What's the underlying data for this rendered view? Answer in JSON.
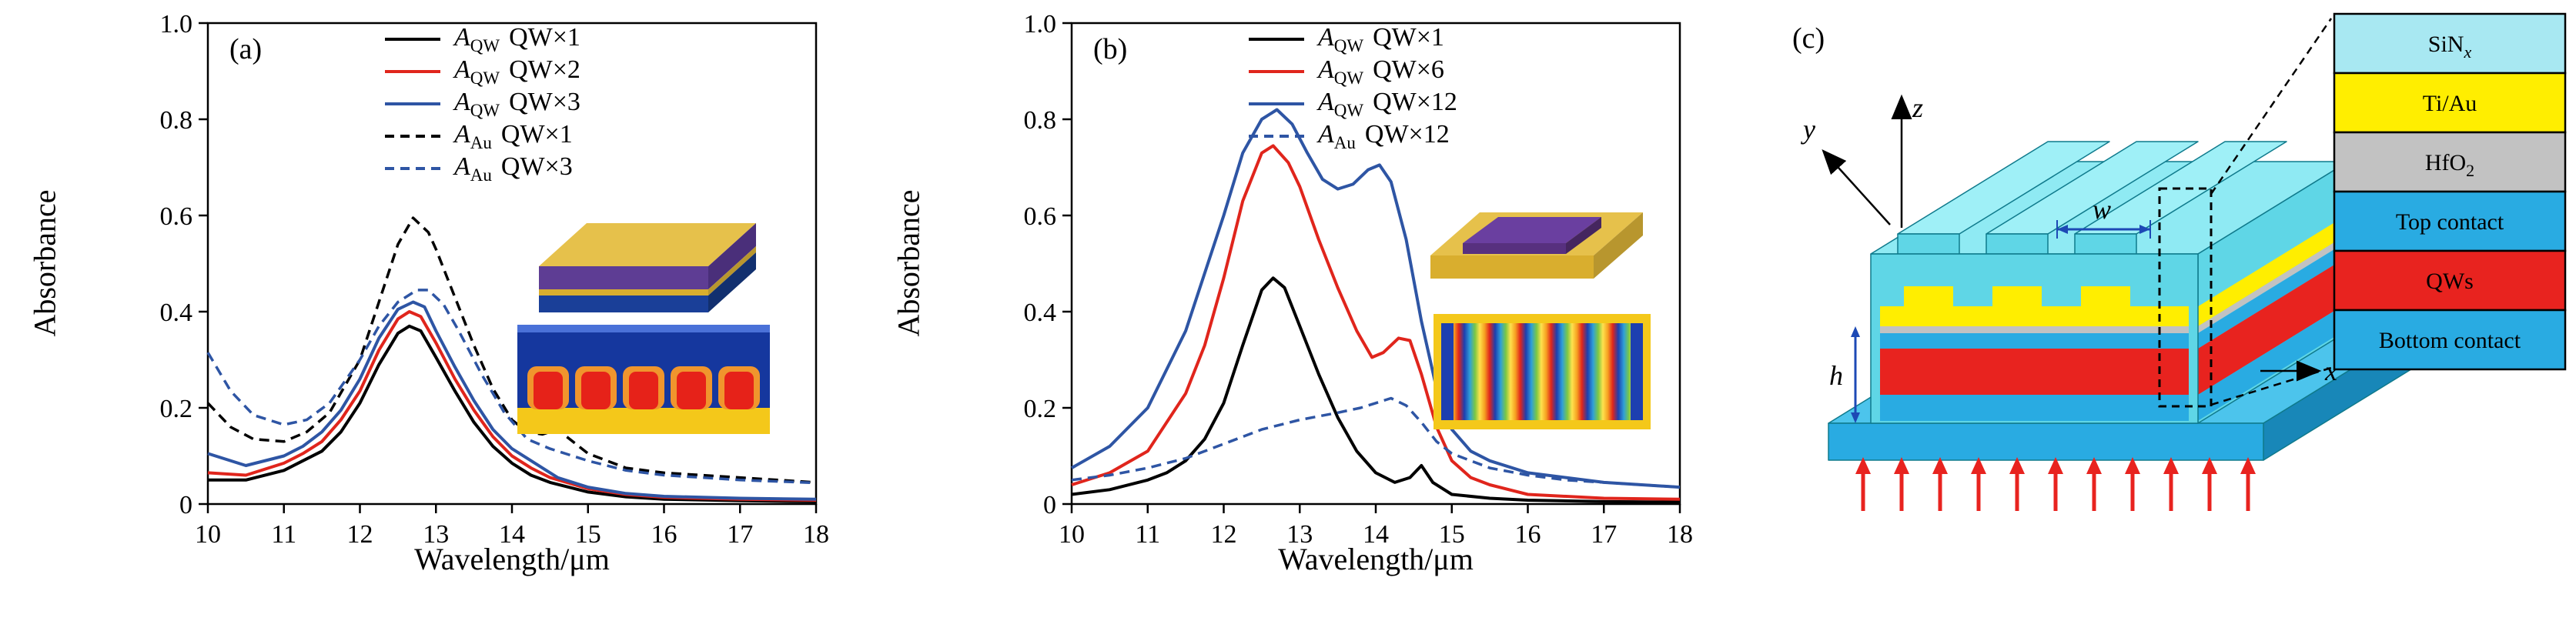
{
  "chart_data": [
    {
      "type": "line",
      "panel_label": "(a)",
      "title": "",
      "xlabel": "Wavelength/μm",
      "ylabel": "Absorbance",
      "xlim": [
        10,
        18
      ],
      "ylim": [
        0,
        1.0
      ],
      "xticks": [
        "10",
        "11",
        "12",
        "13",
        "14",
        "15",
        "16",
        "17",
        "18"
      ],
      "yticks": [
        "0",
        "0.2",
        "0.4",
        "0.6",
        "0.8",
        "1.0"
      ],
      "grid": false,
      "legend_position": "top-center-inside",
      "series": [
        {
          "sym": "A",
          "sub": "QW",
          "label": "QW×1",
          "color": "#000000",
          "dash": false,
          "x": [
            10,
            10.5,
            11,
            11.25,
            11.5,
            11.75,
            12,
            12.25,
            12.5,
            12.65,
            12.8,
            13,
            13.25,
            13.5,
            13.75,
            14,
            14.25,
            14.5,
            15,
            15.5,
            16,
            17,
            18
          ],
          "y": [
            0.05,
            0.05,
            0.07,
            0.09,
            0.11,
            0.15,
            0.21,
            0.29,
            0.355,
            0.37,
            0.36,
            0.305,
            0.235,
            0.17,
            0.12,
            0.085,
            0.06,
            0.045,
            0.025,
            0.015,
            0.01,
            0.007,
            0.005
          ]
        },
        {
          "sym": "A",
          "sub": "QW",
          "label": "QW×2",
          "color": "#e0251c",
          "dash": false,
          "x": [
            10,
            10.5,
            11,
            11.25,
            11.5,
            11.75,
            12,
            12.25,
            12.5,
            12.65,
            12.8,
            13,
            13.25,
            13.5,
            13.75,
            14,
            14.25,
            14.5,
            15,
            15.5,
            16,
            17,
            18
          ],
          "y": [
            0.065,
            0.06,
            0.085,
            0.105,
            0.13,
            0.175,
            0.235,
            0.32,
            0.385,
            0.4,
            0.39,
            0.335,
            0.26,
            0.195,
            0.14,
            0.1,
            0.075,
            0.055,
            0.032,
            0.02,
            0.014,
            0.01,
            0.008
          ]
        },
        {
          "sym": "A",
          "sub": "QW",
          "label": "QW×3",
          "color": "#2e55a4",
          "dash": false,
          "x": [
            10,
            10.5,
            11,
            11.25,
            11.5,
            11.75,
            12,
            12.25,
            12.5,
            12.7,
            12.85,
            13,
            13.25,
            13.5,
            13.75,
            14,
            14.2,
            14.4,
            14.6,
            15,
            15.5,
            16,
            17,
            18
          ],
          "y": [
            0.105,
            0.08,
            0.1,
            0.12,
            0.15,
            0.195,
            0.26,
            0.345,
            0.405,
            0.42,
            0.41,
            0.36,
            0.285,
            0.215,
            0.155,
            0.115,
            0.095,
            0.075,
            0.055,
            0.035,
            0.022,
            0.016,
            0.012,
            0.01
          ]
        },
        {
          "sym": "A",
          "sub": "Au",
          "label": "QW×1",
          "color": "#000000",
          "dash": true,
          "x": [
            10,
            10.3,
            10.6,
            11,
            11.3,
            11.6,
            12,
            12.25,
            12.5,
            12.7,
            12.9,
            13,
            13.25,
            13.5,
            13.75,
            14,
            14.2,
            14.4,
            14.6,
            14.8,
            15,
            15.5,
            16,
            16.5,
            17,
            17.5,
            18
          ],
          "y": [
            0.21,
            0.16,
            0.135,
            0.13,
            0.15,
            0.19,
            0.3,
            0.42,
            0.54,
            0.595,
            0.565,
            0.53,
            0.43,
            0.33,
            0.24,
            0.175,
            0.15,
            0.145,
            0.155,
            0.13,
            0.105,
            0.075,
            0.065,
            0.06,
            0.055,
            0.05,
            0.045
          ]
        },
        {
          "sym": "A",
          "sub": "Au",
          "label": "QW×3",
          "color": "#2e55a4",
          "dash": true,
          "x": [
            10,
            10.3,
            10.6,
            11,
            11.3,
            11.6,
            12,
            12.25,
            12.5,
            12.75,
            12.9,
            13.1,
            13.3,
            13.6,
            13.9,
            14.2,
            14.5,
            14.8,
            15,
            15.5,
            16,
            16.5,
            17,
            17.5,
            18
          ],
          "y": [
            0.315,
            0.235,
            0.185,
            0.165,
            0.175,
            0.21,
            0.3,
            0.37,
            0.42,
            0.445,
            0.445,
            0.415,
            0.36,
            0.27,
            0.19,
            0.135,
            0.115,
            0.1,
            0.09,
            0.07,
            0.06,
            0.055,
            0.05,
            0.047,
            0.044
          ]
        }
      ]
    },
    {
      "type": "line",
      "panel_label": "(b)",
      "title": "",
      "xlabel": "Wavelength/μm",
      "ylabel": "Absorbance",
      "xlim": [
        10,
        18
      ],
      "ylim": [
        0,
        1.0
      ],
      "xticks": [
        "10",
        "11",
        "12",
        "13",
        "14",
        "15",
        "16",
        "17",
        "18"
      ],
      "yticks": [
        "0",
        "0.2",
        "0.4",
        "0.6",
        "0.8",
        "1.0"
      ],
      "grid": false,
      "legend_position": "top-center-inside",
      "series": [
        {
          "sym": "A",
          "sub": "QW",
          "label": "QW×1",
          "color": "#000000",
          "dash": false,
          "x": [
            10,
            10.5,
            11,
            11.25,
            11.5,
            11.75,
            12,
            12.25,
            12.5,
            12.65,
            12.8,
            13,
            13.25,
            13.5,
            13.75,
            14,
            14.25,
            14.45,
            14.6,
            14.75,
            15,
            15.5,
            16,
            17,
            18
          ],
          "y": [
            0.02,
            0.03,
            0.05,
            0.065,
            0.09,
            0.135,
            0.21,
            0.33,
            0.445,
            0.47,
            0.45,
            0.37,
            0.27,
            0.18,
            0.11,
            0.065,
            0.045,
            0.055,
            0.08,
            0.045,
            0.02,
            0.012,
            0.008,
            0.005,
            0.004
          ]
        },
        {
          "sym": "A",
          "sub": "QW",
          "label": "QW×6",
          "color": "#e0251c",
          "dash": false,
          "x": [
            10,
            10.5,
            11,
            11.5,
            11.75,
            12,
            12.25,
            12.5,
            12.65,
            12.85,
            13,
            13.25,
            13.5,
            13.75,
            13.95,
            14.1,
            14.3,
            14.45,
            14.6,
            14.8,
            15,
            15.25,
            15.5,
            16,
            17,
            18
          ],
          "y": [
            0.04,
            0.065,
            0.11,
            0.23,
            0.33,
            0.47,
            0.63,
            0.73,
            0.745,
            0.71,
            0.66,
            0.55,
            0.45,
            0.36,
            0.305,
            0.315,
            0.345,
            0.34,
            0.27,
            0.16,
            0.09,
            0.055,
            0.04,
            0.02,
            0.012,
            0.01
          ]
        },
        {
          "sym": "A",
          "sub": "QW",
          "label": "QW×12",
          "color": "#2e55a4",
          "dash": false,
          "x": [
            10,
            10.5,
            11,
            11.5,
            12,
            12.25,
            12.5,
            12.7,
            12.9,
            13.1,
            13.3,
            13.5,
            13.7,
            13.9,
            14.05,
            14.2,
            14.4,
            14.6,
            14.8,
            15,
            15.25,
            15.5,
            16,
            16.5,
            17,
            17.5,
            18
          ],
          "y": [
            0.075,
            0.12,
            0.2,
            0.36,
            0.6,
            0.73,
            0.8,
            0.82,
            0.79,
            0.73,
            0.675,
            0.655,
            0.665,
            0.695,
            0.705,
            0.67,
            0.55,
            0.38,
            0.24,
            0.155,
            0.11,
            0.09,
            0.065,
            0.055,
            0.045,
            0.04,
            0.035
          ]
        },
        {
          "sym": "A",
          "sub": "Au",
          "label": "QW×12",
          "color": "#2e55a4",
          "dash": true,
          "x": [
            10,
            10.5,
            11,
            11.5,
            12,
            12.5,
            13,
            13.5,
            13.8,
            14,
            14.2,
            14.4,
            14.6,
            14.8,
            15,
            15.5,
            16,
            16.5,
            17,
            17.5,
            18
          ],
          "y": [
            0.05,
            0.06,
            0.075,
            0.095,
            0.125,
            0.155,
            0.175,
            0.19,
            0.2,
            0.21,
            0.22,
            0.205,
            0.17,
            0.13,
            0.105,
            0.075,
            0.06,
            0.05,
            0.045,
            0.04,
            0.035
          ]
        }
      ]
    }
  ],
  "diagram": {
    "panel_label": "(c)",
    "axes": {
      "x": "x",
      "y": "y",
      "z": "z"
    },
    "dims": {
      "width": "w",
      "height": "h"
    },
    "legend_layers": [
      {
        "text": "SiN",
        "sub": "x",
        "color": "#a8e8f2"
      },
      {
        "text": "Ti/Au",
        "sub": "",
        "color": "#ffee00"
      },
      {
        "text": "HfO",
        "sub": "2",
        "color": "#c2c2c2"
      },
      {
        "text": "Top contact",
        "sub": "",
        "color": "#29abe2"
      },
      {
        "text": "QWs",
        "sub": "",
        "color": "#e8231f"
      },
      {
        "text": "Bottom contact",
        "sub": "",
        "color": "#29abe2"
      }
    ],
    "structure_colors": {
      "body": "#5fd6e6",
      "body_top": "#8feaf3",
      "ridge_top": "#9ff0f7",
      "base_front": "#29abe2",
      "base_top": "#4cc4ec",
      "base_side": "#1887b8",
      "tiau": "#ffee00",
      "hfo2": "#c2c2c2",
      "top_contact": "#29abe2",
      "qws": "#e8231f",
      "bottom": "#29abe2",
      "arrow": "#e8231f",
      "dim_arrow": "#1d49b5",
      "edge": "#0f7a8c"
    }
  }
}
